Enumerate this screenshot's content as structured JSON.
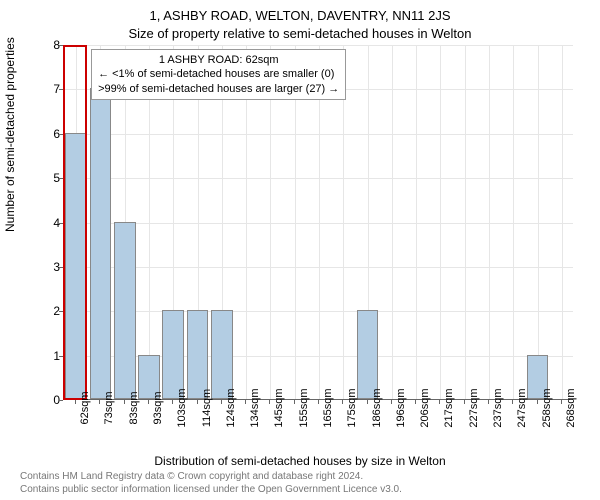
{
  "chart": {
    "type": "bar",
    "title_main": "1, ASHBY ROAD, WELTON, DAVENTRY, NN11 2JS",
    "title_sub": "Size of property relative to semi-detached houses in Welton",
    "title_fontsize": 13,
    "ylabel": "Number of semi-detached properties",
    "xlabel": "Distribution of semi-detached houses by size in Welton",
    "label_fontsize": 12,
    "tick_fontsize": 11,
    "ylim": [
      0,
      8
    ],
    "ytick_step": 1,
    "background_color": "#ffffff",
    "grid_color": "#e6e6e6",
    "axis_color": "#666666",
    "bar_color_default": "#b3cde3",
    "bar_color_highlight": "#b3cde3",
    "bar_width": 0.9,
    "highlight_border": "#cc0000",
    "categories": [
      "62sqm",
      "73sqm",
      "83sqm",
      "93sqm",
      "103sqm",
      "114sqm",
      "124sqm",
      "134sqm",
      "145sqm",
      "155sqm",
      "165sqm",
      "175sqm",
      "186sqm",
      "196sqm",
      "206sqm",
      "217sqm",
      "227sqm",
      "237sqm",
      "247sqm",
      "258sqm",
      "268sqm"
    ],
    "values": [
      6,
      7,
      4,
      1,
      2,
      2,
      2,
      0,
      0,
      0,
      0,
      0,
      2,
      0,
      0,
      0,
      0,
      0,
      0,
      1,
      0
    ],
    "highlight_index": 0,
    "legend": {
      "line1": "1 ASHBY ROAD: 62sqm",
      "line2": "← <1% of semi-detached houses are smaller (0)",
      "line3": ">99% of semi-detached houses are larger (27) →",
      "fontsize": 11,
      "border_color": "#999999"
    },
    "footer_line1": "Contains HM Land Registry data © Crown copyright and database right 2024.",
    "footer_line2": "Contains public sector information licensed under the Open Government Licence v3.0.",
    "footer_color": "#777777",
    "footer_fontsize": 10
  }
}
